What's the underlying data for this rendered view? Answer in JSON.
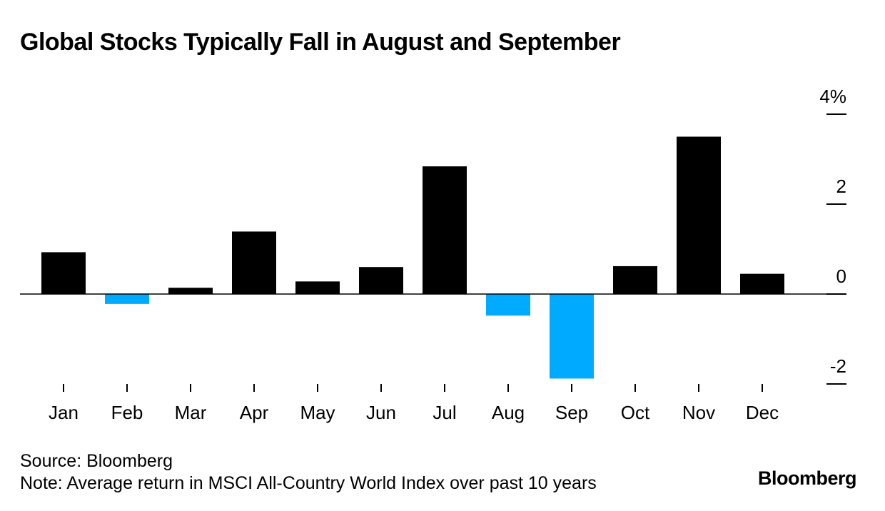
{
  "chart_data": {
    "type": "bar",
    "title": "Global Stocks Typically Fall in August and September",
    "xlabel": "",
    "ylabel": "",
    "categories": [
      "Jan",
      "Feb",
      "Mar",
      "Apr",
      "May",
      "Jun",
      "Jul",
      "Aug",
      "Sep",
      "Oct",
      "Nov",
      "Dec"
    ],
    "values": [
      0.93,
      -0.22,
      0.14,
      1.39,
      0.28,
      0.6,
      2.84,
      -0.48,
      -1.88,
      0.62,
      3.5,
      0.45
    ],
    "ylim": [
      -2,
      4
    ],
    "yticks": [
      {
        "value": 4,
        "label": "4%"
      },
      {
        "value": 2,
        "label": "2"
      },
      {
        "value": 0,
        "label": "0"
      },
      {
        "value": -2,
        "label": "-2"
      }
    ],
    "grid": false,
    "colors": {
      "positive": "#000000",
      "negative": "#00aaff",
      "axis": "#000000"
    }
  },
  "footer": {
    "source": "Source: Bloomberg",
    "note": "Note: Average return in MSCI All-Country World Index over past 10 years",
    "brand": "Bloomberg"
  }
}
